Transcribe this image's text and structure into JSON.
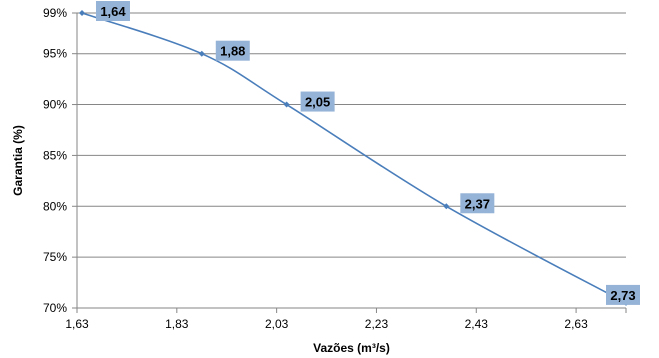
{
  "chart_data": {
    "type": "line",
    "title": "",
    "xlabel": "Vazões (m³/s)",
    "ylabel": "Garantia (%)",
    "x_ticks": [
      1.63,
      1.83,
      2.03,
      2.23,
      2.43,
      2.63
    ],
    "x_tick_labels": [
      "1,63",
      "1,83",
      "2,03",
      "2,23",
      "2,43",
      "2,63"
    ],
    "y_ticks": [
      70,
      75,
      80,
      85,
      90,
      95,
      99
    ],
    "y_tick_labels": [
      "70%",
      "75%",
      "80%",
      "85%",
      "90%",
      "95%",
      "99%"
    ],
    "xlim": [
      1.63,
      2.73
    ],
    "ylim": [
      70,
      99
    ],
    "grid": "horizontal",
    "series": [
      {
        "points": [
          {
            "x": 1.64,
            "y": 99
          },
          {
            "x": 1.88,
            "y": 95
          },
          {
            "x": 2.05,
            "y": 90
          },
          {
            "x": 2.37,
            "y": 80
          },
          {
            "x": 2.73,
            "y": 70.5
          }
        ],
        "data_labels": [
          "1,64",
          "1,88",
          "2,05",
          "2,37",
          "2,73"
        ]
      }
    ],
    "colors": {
      "line": "#4a7ebb",
      "label_bg": "#95b3d7",
      "grid": "#868686",
      "axis": "#868686"
    }
  }
}
